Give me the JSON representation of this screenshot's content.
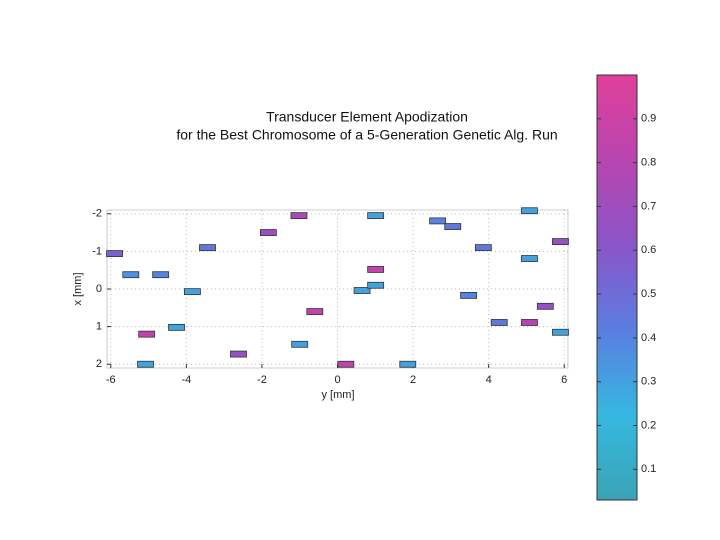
{
  "chart_data": {
    "type": "scatter",
    "title_lines": [
      "Transducer Element Apodization",
      "for the Best Chromosome of a 5-Generation Genetic Alg. Run"
    ],
    "x_label": "y [mm]",
    "y_label": "x [mm]",
    "x": [
      -5.9,
      -5.47,
      -4.68,
      -5.05,
      -5.08,
      -4.26,
      -3.84,
      -3.44,
      -2.62,
      -1.83,
      -1.02,
      -1.0,
      -0.6,
      0.22,
      0.65,
      1.01,
      1.01,
      1.01,
      1.86,
      2.65,
      3.05,
      3.47,
      3.86,
      4.28,
      5.08,
      5.08,
      5.08,
      5.5,
      5.9,
      5.9
    ],
    "y": [
      -0.94,
      -0.38,
      -0.38,
      1.2,
      2.0,
      1.02,
      0.07,
      -1.1,
      1.73,
      -1.5,
      -1.95,
      1.47,
      0.6,
      2.0,
      0.04,
      -0.52,
      -0.1,
      -1.95,
      2.0,
      -1.81,
      -1.66,
      0.17,
      -1.1,
      0.89,
      -2.08,
      -0.81,
      0.89,
      0.46,
      -1.26,
      1.15
    ],
    "values": [
      0.55,
      0.35,
      0.4,
      0.85,
      0.3,
      0.3,
      0.3,
      0.45,
      0.65,
      0.7,
      0.75,
      0.3,
      0.85,
      0.85,
      0.3,
      0.85,
      0.3,
      0.3,
      0.3,
      0.4,
      0.45,
      0.4,
      0.45,
      0.45,
      0.3,
      0.3,
      0.8,
      0.65,
      0.65,
      0.3
    ],
    "xlim": [
      -6.1,
      6.1
    ],
    "xticks": [
      -6,
      -4,
      -2,
      0,
      2,
      4,
      6
    ],
    "ylim": [
      -2.1,
      2.1
    ],
    "yticks": [
      -2,
      -1,
      0,
      1,
      2
    ],
    "y_inverted": true,
    "grid": true,
    "clim": [
      0.03,
      1.0
    ],
    "cticks": [
      0.1,
      0.2,
      0.3,
      0.4,
      0.5,
      0.6,
      0.7,
      0.8,
      0.9
    ],
    "colormap": [
      "#3aa3b4",
      "#35b8e0",
      "#5a7ee0",
      "#8a55c8",
      "#b845b0",
      "#e0409a"
    ]
  }
}
